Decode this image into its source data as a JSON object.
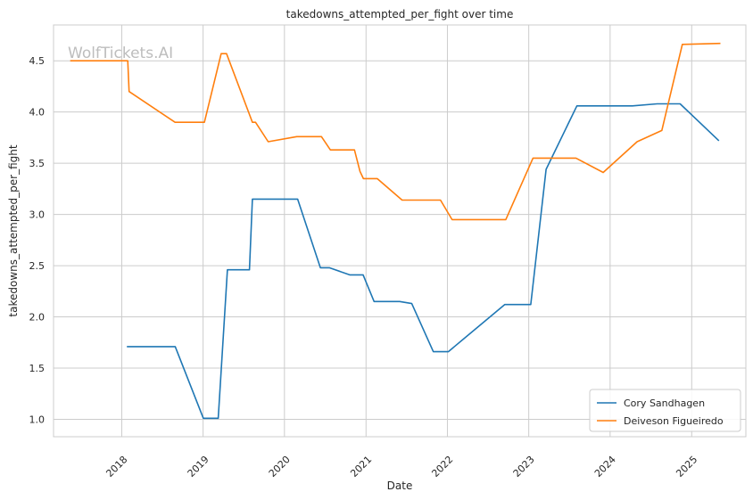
{
  "watermark": "WolfTickets.AI",
  "chart_data": {
    "type": "line",
    "title": "takedowns_attempted_per_fight over time",
    "xlabel": "Date",
    "ylabel": "takedowns_attempted_per_fight",
    "x_ticks": [
      "2018",
      "2019",
      "2020",
      "2021",
      "2022",
      "2023",
      "2024",
      "2025"
    ],
    "y_ticks": [
      "1.0",
      "1.5",
      "2.0",
      "2.5",
      "3.0",
      "3.5",
      "4.0",
      "4.5"
    ],
    "xlim": [
      "2017-03-01",
      "2025-09-01"
    ],
    "ylim": [
      0.83,
      4.85
    ],
    "grid": true,
    "legend_position": "lower-right",
    "series": [
      {
        "name": "Cory Sandhagen",
        "color": "#1f77b4",
        "points": [
          [
            "2018-01-24",
            1.71
          ],
          [
            "2018-08-29",
            1.71
          ],
          [
            "2019-01-02",
            1.01
          ],
          [
            "2019-03-10",
            1.01
          ],
          [
            "2019-04-20",
            2.46
          ],
          [
            "2019-07-28",
            2.46
          ],
          [
            "2019-08-10",
            3.15
          ],
          [
            "2020-02-29",
            3.15
          ],
          [
            "2020-06-10",
            2.48
          ],
          [
            "2020-07-20",
            2.48
          ],
          [
            "2020-10-20",
            2.41
          ],
          [
            "2020-12-19",
            2.41
          ],
          [
            "2021-02-06",
            2.15
          ],
          [
            "2021-06-01",
            2.15
          ],
          [
            "2021-07-25",
            2.13
          ],
          [
            "2021-10-30",
            1.66
          ],
          [
            "2022-01-05",
            1.66
          ],
          [
            "2022-09-15",
            2.12
          ],
          [
            "2023-01-10",
            2.12
          ],
          [
            "2023-03-20",
            3.44
          ],
          [
            "2023-08-05",
            4.06
          ],
          [
            "2024-04-10",
            4.06
          ],
          [
            "2024-07-30",
            4.08
          ],
          [
            "2024-11-10",
            4.08
          ],
          [
            "2025-05-03",
            3.72
          ]
        ]
      },
      {
        "name": "Deiveson Figueiredo",
        "color": "#ff7f0e",
        "points": [
          [
            "2017-05-15",
            4.5
          ],
          [
            "2018-01-28",
            4.5
          ],
          [
            "2018-02-03",
            4.2
          ],
          [
            "2018-08-28",
            3.9
          ],
          [
            "2019-01-07",
            3.9
          ],
          [
            "2019-03-23",
            4.57
          ],
          [
            "2019-04-16",
            4.57
          ],
          [
            "2019-08-10",
            3.9
          ],
          [
            "2019-08-24",
            3.9
          ],
          [
            "2019-10-20",
            3.71
          ],
          [
            "2020-02-25",
            3.76
          ],
          [
            "2020-06-15",
            3.76
          ],
          [
            "2020-07-25",
            3.63
          ],
          [
            "2020-11-10",
            3.63
          ],
          [
            "2020-12-05",
            3.42
          ],
          [
            "2020-12-20",
            3.35
          ],
          [
            "2021-02-20",
            3.35
          ],
          [
            "2021-06-12",
            3.14
          ],
          [
            "2021-12-01",
            3.14
          ],
          [
            "2022-01-22",
            2.95
          ],
          [
            "2022-09-20",
            2.95
          ],
          [
            "2023-01-20",
            3.55
          ],
          [
            "2023-08-01",
            3.55
          ],
          [
            "2023-12-01",
            3.41
          ],
          [
            "2024-05-01",
            3.71
          ],
          [
            "2024-08-20",
            3.82
          ],
          [
            "2024-11-20",
            4.66
          ],
          [
            "2025-05-10",
            4.67
          ]
        ]
      }
    ]
  }
}
